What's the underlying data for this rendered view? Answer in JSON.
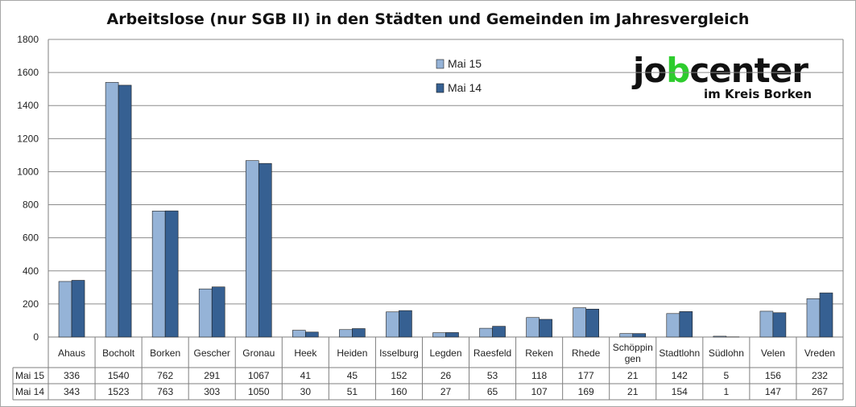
{
  "chart_data": {
    "type": "bar",
    "title": "Arbeitslose (nur SGB II) in den Städten und Gemeinden im Jahresvergleich",
    "categories": [
      "Ahaus",
      "Bocholt",
      "Borken",
      "Gescher",
      "Gronau",
      "Heek",
      "Heiden",
      "Isselburg",
      "Legden",
      "Raesfeld",
      "Reken",
      "Rhede",
      "Schöppingen",
      "Stadtlohn",
      "Südlohn",
      "Velen",
      "Vreden"
    ],
    "category_display": [
      [
        "Ahaus"
      ],
      [
        "Bocholt"
      ],
      [
        "Borken"
      ],
      [
        "Gescher"
      ],
      [
        "Gronau"
      ],
      [
        "Heek"
      ],
      [
        "Heiden"
      ],
      [
        "Isselburg"
      ],
      [
        "Legden"
      ],
      [
        "Raesfeld"
      ],
      [
        "Reken"
      ],
      [
        "Rhede"
      ],
      [
        "Schöppin",
        "gen"
      ],
      [
        "Stadtlohn"
      ],
      [
        "Südlohn"
      ],
      [
        "Velen"
      ],
      [
        "Vreden"
      ]
    ],
    "series": [
      {
        "name": "Mai 15",
        "color": "#95b3d7",
        "values": [
          336,
          1540,
          762,
          291,
          1067,
          41,
          45,
          152,
          26,
          53,
          118,
          177,
          21,
          142,
          5,
          156,
          232
        ]
      },
      {
        "name": "Mai 14",
        "color": "#366092",
        "values": [
          343,
          1523,
          763,
          303,
          1050,
          30,
          51,
          160,
          27,
          65,
          107,
          169,
          21,
          154,
          1,
          147,
          267
        ]
      }
    ],
    "ylim": [
      0,
      1800
    ],
    "yticks": [
      0,
      200,
      400,
      600,
      800,
      1000,
      1200,
      1400,
      1600,
      1800
    ],
    "grid": true,
    "legend_position": "top-center",
    "data_table": true
  },
  "logo": {
    "text_before": "jo",
    "text_b": "b",
    "text_after": "center",
    "subtitle": "im Kreis Borken",
    "accent_color": "#2ecc2e"
  }
}
